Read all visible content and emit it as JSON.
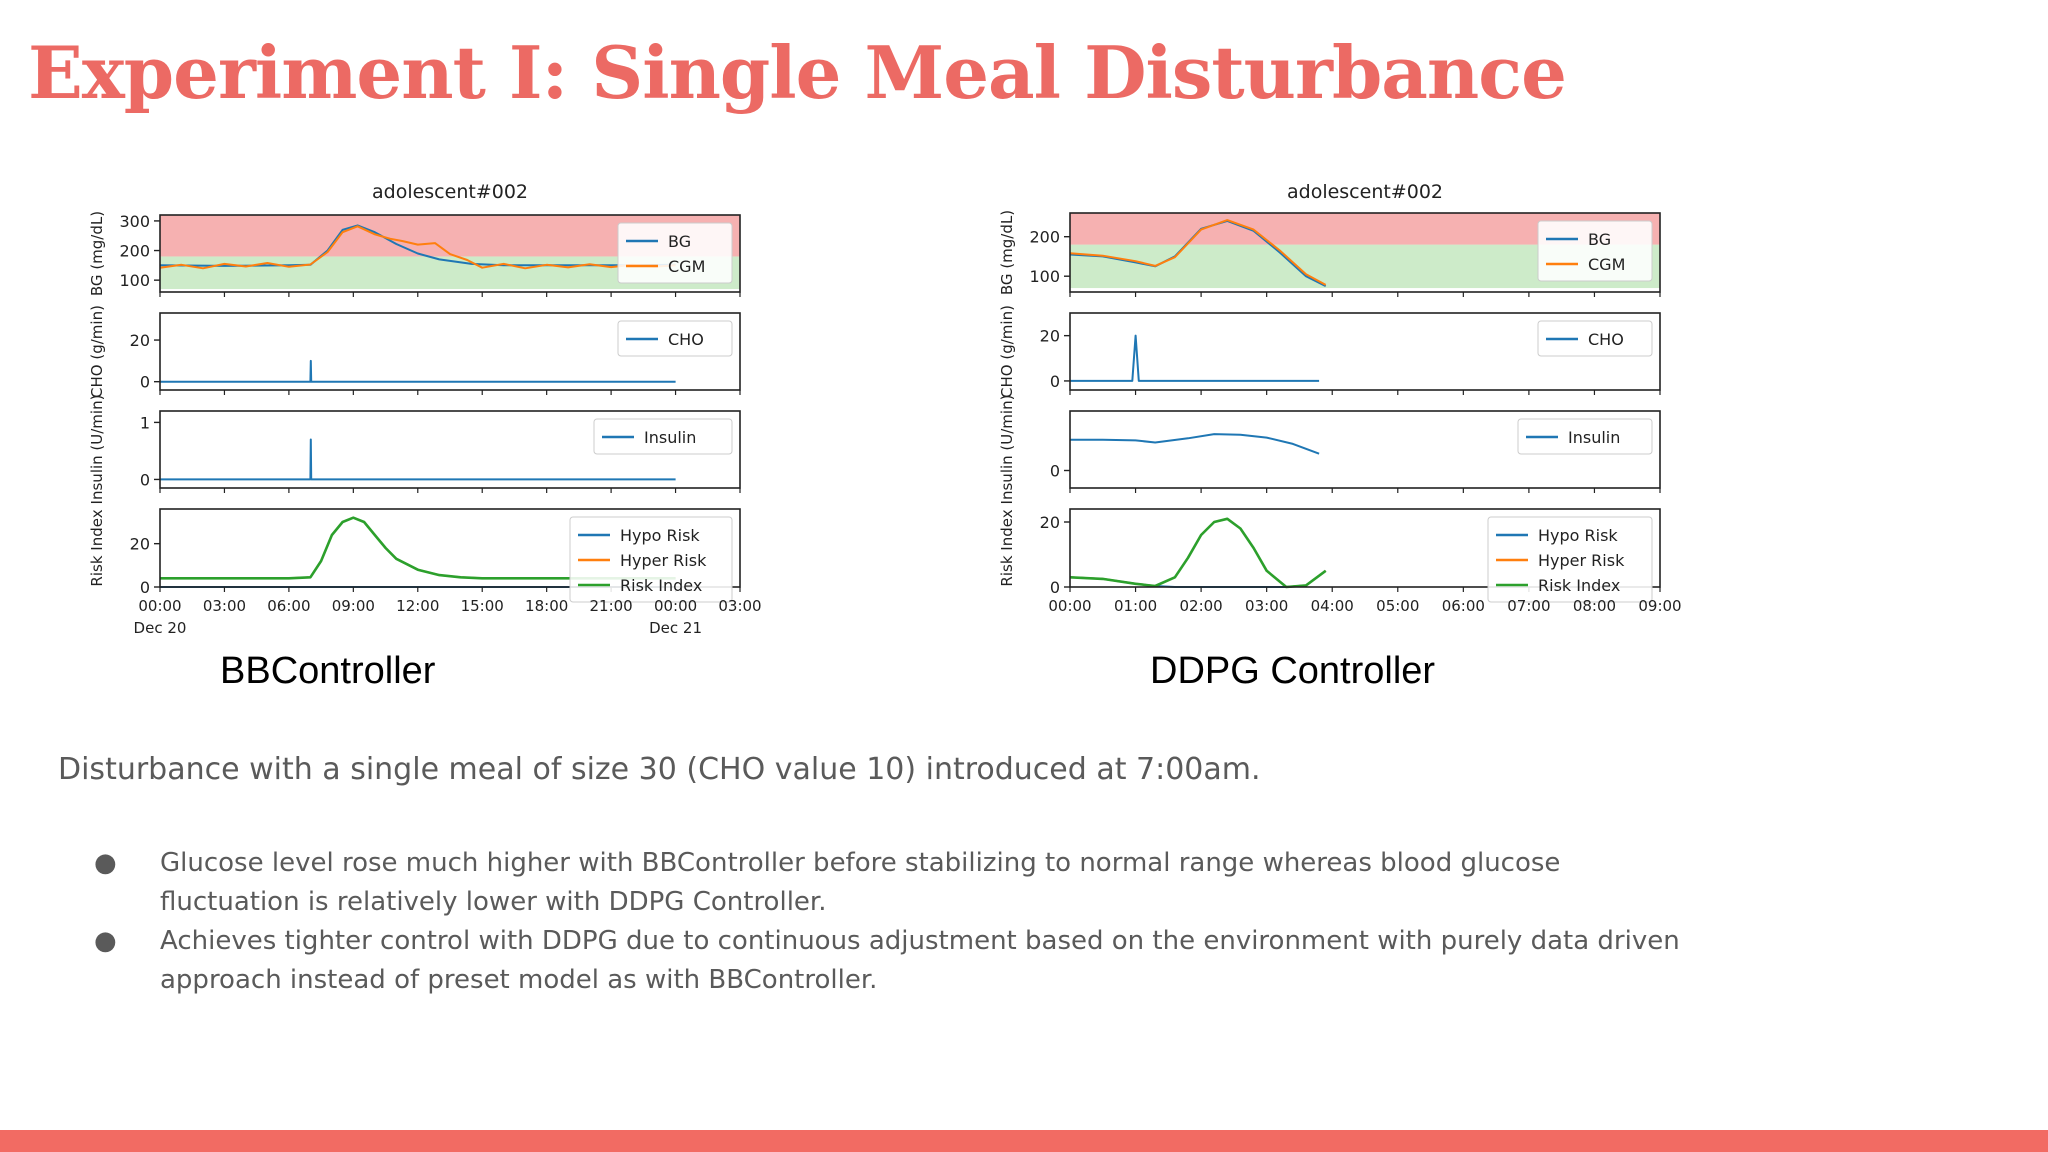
{
  "slide": {
    "title": "Experiment I: Single Meal Disturbance",
    "summary": "Disturbance with a single meal of size 30 (CHO value 10) introduced at 7:00am.",
    "bullets": [
      "Glucose level rose much higher with BBController before stabilizing to normal range whereas blood glucose fluctuation is relatively lower with DDPG Controller.",
      "Achieves tighter control with DDPG due to continuous adjustment based on the environment with purely data driven approach instead of preset model as with BBController."
    ],
    "bullet_symbol": "●"
  },
  "colors": {
    "title": "#ec6a64",
    "footer_bar": "#f26b63",
    "bg_line": "#1f77b4",
    "cgm_line": "#ff7f0e",
    "risk_index_line": "#2ca02c",
    "hyper_zone": "#f4a3a3",
    "normal_zone": "#c4e8c0"
  },
  "chart_data": [
    {
      "type": "line",
      "caption": "BBController",
      "title": "adolescent#002",
      "x_ticks": [
        "00:00",
        "03:00",
        "06:00",
        "09:00",
        "12:00",
        "15:00",
        "18:00",
        "21:00",
        "00:00",
        "03:00"
      ],
      "x_subticks": [
        "Dec 20",
        "",
        "",
        "",
        "",
        "",
        "",
        "",
        "Dec 21",
        ""
      ],
      "x_range_hours": [
        0,
        27
      ],
      "panels": [
        {
          "ylabel": "BG (mg/dL)",
          "ylim": [
            60,
            320
          ],
          "yticks": [
            "100",
            "200",
            "300"
          ],
          "ytick_values": [
            100,
            200,
            300
          ],
          "zones": [
            {
              "name": "normal",
              "from": 70,
              "to": 180
            },
            {
              "name": "hyper",
              "from": 180,
              "to": 320
            }
          ],
          "series": [
            {
              "name": "BG",
              "x": [
                0,
                3,
                6,
                7,
                7.8,
                8.5,
                9.2,
                10,
                11,
                12,
                13,
                14.5,
                16,
                18,
                20,
                22,
                24
              ],
              "y": [
                150,
                148,
                150,
                152,
                200,
                270,
                285,
                262,
                222,
                190,
                170,
                155,
                150,
                150,
                150,
                150,
                152
              ]
            },
            {
              "name": "CGM",
              "x": [
                0,
                1,
                2,
                3,
                4,
                5,
                6,
                7,
                7.8,
                8.5,
                9.2,
                10,
                10.7,
                11.3,
                12,
                12.8,
                13.5,
                14.3,
                15,
                16,
                17,
                18,
                19,
                20,
                21,
                22,
                23,
                24
              ],
              "y": [
                142,
                152,
                140,
                155,
                146,
                158,
                145,
                153,
                195,
                262,
                282,
                255,
                240,
                232,
                220,
                225,
                188,
                168,
                142,
                155,
                140,
                152,
                143,
                154,
                144,
                152,
                145,
                150
              ]
            }
          ]
        },
        {
          "ylabel": "CHO (g/min)",
          "ylim": [
            -4,
            33
          ],
          "yticks": [
            "0",
            "20"
          ],
          "ytick_values": [
            0,
            20
          ],
          "series": [
            {
              "name": "CHO",
              "x": [
                0,
                7,
                7.02,
                7.04,
                24
              ],
              "y": [
                0,
                0,
                10,
                0,
                0
              ]
            }
          ]
        },
        {
          "ylabel": "Insulin (U/min)",
          "ylim": [
            -0.15,
            1.2
          ],
          "yticks": [
            "0",
            "1"
          ],
          "ytick_values": [
            0,
            1
          ],
          "series": [
            {
              "name": "Insulin",
              "x": [
                0,
                7,
                7.02,
                7.04,
                24
              ],
              "y": [
                0,
                0,
                0.7,
                0,
                0
              ]
            }
          ]
        },
        {
          "ylabel": "Risk Index",
          "ylim": [
            0,
            36
          ],
          "yticks": [
            "0",
            "20"
          ],
          "ytick_values": [
            0,
            20
          ],
          "series": [
            {
              "name": "Hypo Risk",
              "x": [
                0,
                24
              ],
              "y": [
                0,
                0
              ]
            },
            {
              "name": "Hyper Risk",
              "x": [
                0,
                3,
                6,
                7,
                7.5,
                8,
                8.5,
                9,
                9.5,
                10,
                10.5,
                11,
                12,
                13,
                14,
                15,
                16,
                18,
                20,
                22,
                24
              ],
              "y": [
                4,
                4,
                4,
                4.5,
                12,
                24,
                30,
                32,
                30,
                24,
                18,
                13,
                8,
                5.5,
                4.5,
                4,
                4,
                4,
                4,
                4,
                4
              ]
            },
            {
              "name": "Risk Index",
              "x": [
                0,
                3,
                6,
                7,
                7.5,
                8,
                8.5,
                9,
                9.5,
                10,
                10.5,
                11,
                12,
                13,
                14,
                15,
                16,
                18,
                20,
                22,
                24
              ],
              "y": [
                4,
                4,
                4,
                4.5,
                12,
                24,
                30,
                32,
                30,
                24,
                18,
                13,
                8,
                5.5,
                4.5,
                4,
                4,
                4,
                4,
                4,
                4
              ]
            }
          ]
        }
      ]
    },
    {
      "type": "line",
      "caption": "DDPG Controller",
      "title": "adolescent#002",
      "x_ticks": [
        "00:00",
        "01:00",
        "02:00",
        "03:00",
        "04:00",
        "05:00",
        "06:00",
        "07:00",
        "08:00",
        "09:00"
      ],
      "x_subticks": [
        "",
        "",
        "",
        "",
        "",
        "",
        "",
        "",
        "",
        ""
      ],
      "x_range_hours": [
        0,
        9
      ],
      "panels": [
        {
          "ylabel": "BG (mg/dL)",
          "ylim": [
            60,
            260
          ],
          "yticks": [
            "100",
            "200"
          ],
          "ytick_values": [
            100,
            200
          ],
          "zones": [
            {
              "name": "normal",
              "from": 70,
              "to": 180
            },
            {
              "name": "hyper",
              "from": 180,
              "to": 260
            }
          ],
          "series": [
            {
              "name": "BG",
              "x": [
                0,
                0.5,
                1.0,
                1.3,
                1.6,
                2.0,
                2.4,
                2.8,
                3.2,
                3.6,
                3.9
              ],
              "y": [
                155,
                150,
                135,
                125,
                150,
                220,
                240,
                215,
                160,
                100,
                75
              ]
            },
            {
              "name": "CGM",
              "x": [
                0,
                0.5,
                1.0,
                1.3,
                1.6,
                2.0,
                2.4,
                2.8,
                3.2,
                3.6,
                3.9
              ],
              "y": [
                158,
                152,
                138,
                126,
                148,
                218,
                242,
                218,
                165,
                105,
                78
              ]
            }
          ]
        },
        {
          "ylabel": "CHO (g/min)",
          "ylim": [
            -4,
            30
          ],
          "yticks": [
            "0",
            "20"
          ],
          "ytick_values": [
            0,
            20
          ],
          "series": [
            {
              "name": "CHO",
              "x": [
                0,
                0.95,
                1.0,
                1.05,
                3.8
              ],
              "y": [
                0,
                0,
                20,
                0,
                0
              ]
            }
          ]
        },
        {
          "ylabel": "Insulin (U/min)",
          "ylim": [
            -0.25,
            0.85
          ],
          "yticks": [
            "0"
          ],
          "ytick_values": [
            0
          ],
          "series": [
            {
              "name": "Insulin",
              "x": [
                0,
                0.5,
                1.0,
                1.3,
                1.8,
                2.2,
                2.6,
                3.0,
                3.4,
                3.8
              ],
              "y": [
                0.44,
                0.44,
                0.43,
                0.4,
                0.46,
                0.52,
                0.51,
                0.47,
                0.38,
                0.24
              ]
            }
          ]
        },
        {
          "ylabel": "Risk Index",
          "ylim": [
            0,
            24
          ],
          "yticks": [
            "0",
            "20"
          ],
          "ytick_values": [
            0,
            20
          ],
          "series": [
            {
              "name": "Hypo Risk",
              "x": [
                0,
                0.5,
                1.0,
                1.3,
                1.6,
                3.3,
                3.6,
                3.9
              ],
              "y": [
                3,
                2.5,
                1,
                0.3,
                0,
                0,
                0.5,
                5
              ]
            },
            {
              "name": "Hyper Risk",
              "x": [
                0,
                0.5,
                1.0,
                1.3,
                1.6,
                1.8,
                2.0,
                2.2,
                2.4,
                2.6,
                2.8,
                3.0,
                3.3,
                3.6,
                3.9
              ],
              "y": [
                3,
                2.5,
                1,
                0.3,
                3,
                9,
                16,
                20,
                21,
                18,
                12,
                5,
                0,
                0.5,
                5
              ]
            },
            {
              "name": "Risk Index",
              "x": [
                0,
                0.5,
                1.0,
                1.3,
                1.6,
                1.8,
                2.0,
                2.2,
                2.4,
                2.6,
                2.8,
                3.0,
                3.3,
                3.6,
                3.9
              ],
              "y": [
                3,
                2.5,
                1,
                0.3,
                3,
                9,
                16,
                20,
                21,
                18,
                12,
                5,
                0,
                0.5,
                5
              ]
            }
          ]
        }
      ]
    }
  ]
}
